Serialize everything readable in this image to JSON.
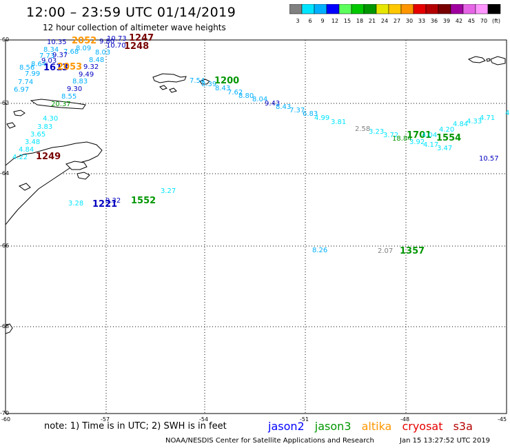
{
  "title": "12:00 – 23:59 UTC 01/14/2019",
  "subtitle": "12 hour collection of altimeter wave heights",
  "colorbar": {
    "colors": [
      "#808080",
      "#00e5ff",
      "#00b0ff",
      "#0000ff",
      "#5cff5c",
      "#00c800",
      "#009600",
      "#e6e600",
      "#ffc800",
      "#ff9600",
      "#e60000",
      "#b40000",
      "#780000",
      "#a000a0",
      "#e664e6",
      "#ff96ff",
      "#000000"
    ],
    "labels": [
      "3",
      "6",
      "9",
      "12",
      "15",
      "18",
      "21",
      "24",
      "27",
      "30",
      "33",
      "36",
      "39",
      "42",
      "45",
      "70",
      "(ft)"
    ]
  },
  "axes": {
    "lat_labels": [
      "-60",
      "-62",
      "-64",
      "-66",
      "-68",
      "-70"
    ],
    "lon_labels": [
      "-60",
      "-57",
      "-54",
      "-51",
      "-48",
      "-45"
    ]
  },
  "wave_heights": [
    {
      "text": "10.35",
      "color": "#0000c0"
    },
    {
      "text": "2052",
      "color": "#ff9600"
    },
    {
      "text": "9.80",
      "color": "#0000c0"
    },
    {
      "text": "10.73",
      "color": "#0000c0"
    },
    {
      "text": "1247",
      "color": "#780000"
    },
    {
      "text": "10.70",
      "color": "#0000c0"
    },
    {
      "text": "1248",
      "color": "#780000"
    },
    {
      "text": "8.34",
      "color": "#00b0ff"
    },
    {
      "text": "7.68",
      "color": "#00b0ff"
    },
    {
      "text": "8.09",
      "color": "#00b0ff"
    },
    {
      "text": "7.73",
      "color": "#00b0ff"
    },
    {
      "text": "9.37",
      "color": "#0000c0"
    },
    {
      "text": "8.03",
      "color": "#00b0ff"
    },
    {
      "text": "9.03",
      "color": "#0000c0"
    },
    {
      "text": "8.48",
      "color": "#00b0ff"
    },
    {
      "text": "8.56",
      "color": "#00b0ff"
    },
    {
      "text": "8.64",
      "color": "#00b0ff"
    },
    {
      "text": "1613",
      "color": "#0000c0"
    },
    {
      "text": "2053",
      "color": "#ff9600"
    },
    {
      "text": "9.32",
      "color": "#0000c0"
    },
    {
      "text": "7.99",
      "color": "#00b0ff"
    },
    {
      "text": "9.49",
      "color": "#0000c0"
    },
    {
      "text": "7.74",
      "color": "#00b0ff"
    },
    {
      "text": "8.83",
      "color": "#00b0ff"
    },
    {
      "text": "6.97",
      "color": "#00b0ff"
    },
    {
      "text": "9.30",
      "color": "#0000c0"
    },
    {
      "text": "8.55",
      "color": "#00b0ff"
    },
    {
      "text": "20.37",
      "color": "#009600"
    },
    {
      "text": "4.30",
      "color": "#00e5ff"
    },
    {
      "text": "3.83",
      "color": "#00e5ff"
    },
    {
      "text": "3.65",
      "color": "#00e5ff"
    },
    {
      "text": "3.48",
      "color": "#00e5ff"
    },
    {
      "text": "4.84",
      "color": "#00e5ff"
    },
    {
      "text": "4.22",
      "color": "#00e5ff"
    },
    {
      "text": "1249",
      "color": "#780000"
    },
    {
      "text": "7.54",
      "color": "#00b0ff"
    },
    {
      "text": "8.39",
      "color": "#00b0ff"
    },
    {
      "text": "1200",
      "color": "#009600"
    },
    {
      "text": "8.43",
      "color": "#00b0ff"
    },
    {
      "text": "7.62",
      "color": "#00b0ff"
    },
    {
      "text": "8.80",
      "color": "#00b0ff"
    },
    {
      "text": "8.04",
      "color": "#00b0ff"
    },
    {
      "text": "9.43",
      "color": "#0000c0"
    },
    {
      "text": "8.43",
      "color": "#00b0ff"
    },
    {
      "text": "7.37",
      "color": "#00b0ff"
    },
    {
      "text": "6.83",
      "color": "#00b0ff"
    },
    {
      "text": "4.99",
      "color": "#00e5ff"
    },
    {
      "text": "3.81",
      "color": "#00e5ff"
    },
    {
      "text": "2.58",
      "color": "#808080"
    },
    {
      "text": "3.23",
      "color": "#00e5ff"
    },
    {
      "text": "3.72",
      "color": "#00e5ff"
    },
    {
      "text": "1701",
      "color": "#009600"
    },
    {
      "text": "18.84",
      "color": "#009600"
    },
    {
      "text": "3.92",
      "color": "#00e5ff"
    },
    {
      "text": "4.04",
      "color": "#00e5ff"
    },
    {
      "text": "4.17",
      "color": "#00e5ff"
    },
    {
      "text": "4.20",
      "color": "#00e5ff"
    },
    {
      "text": "1554",
      "color": "#009600"
    },
    {
      "text": "4.84",
      "color": "#00e5ff"
    },
    {
      "text": "4.33",
      "color": "#00e5ff"
    },
    {
      "text": "4.71",
      "color": "#00e5ff"
    },
    {
      "text": "4.6",
      "color": "#00e5ff"
    },
    {
      "text": "3.47",
      "color": "#00e5ff"
    },
    {
      "text": "10.57",
      "color": "#0000c0"
    },
    {
      "text": "3.27",
      "color": "#00e5ff"
    },
    {
      "text": "3.28",
      "color": "#00e5ff"
    },
    {
      "text": "1221",
      "color": "#0000c0"
    },
    {
      "text": "9.32",
      "color": "#0000c0"
    },
    {
      "text": "1552",
      "color": "#009600"
    },
    {
      "text": "8.26",
      "color": "#00b0ff"
    },
    {
      "text": "2.07",
      "color": "#808080"
    },
    {
      "text": "1357",
      "color": "#009600"
    }
  ],
  "note": "note:  1) Time is in UTC;  2) SWH is in feet",
  "satellites": [
    {
      "name": "jason2",
      "color": "#0000ff"
    },
    {
      "name": "jason3",
      "color": "#009600"
    },
    {
      "name": "altika",
      "color": "#ff9600"
    },
    {
      "name": "cryosat",
      "color": "#e60000"
    },
    {
      "name": "s3a",
      "color": "#b40000"
    }
  ],
  "credit": "NOAA/NESDIS Center for Satellite Applications and Research",
  "timestamp": "Jan 15 13:27:52 UTC 2019"
}
